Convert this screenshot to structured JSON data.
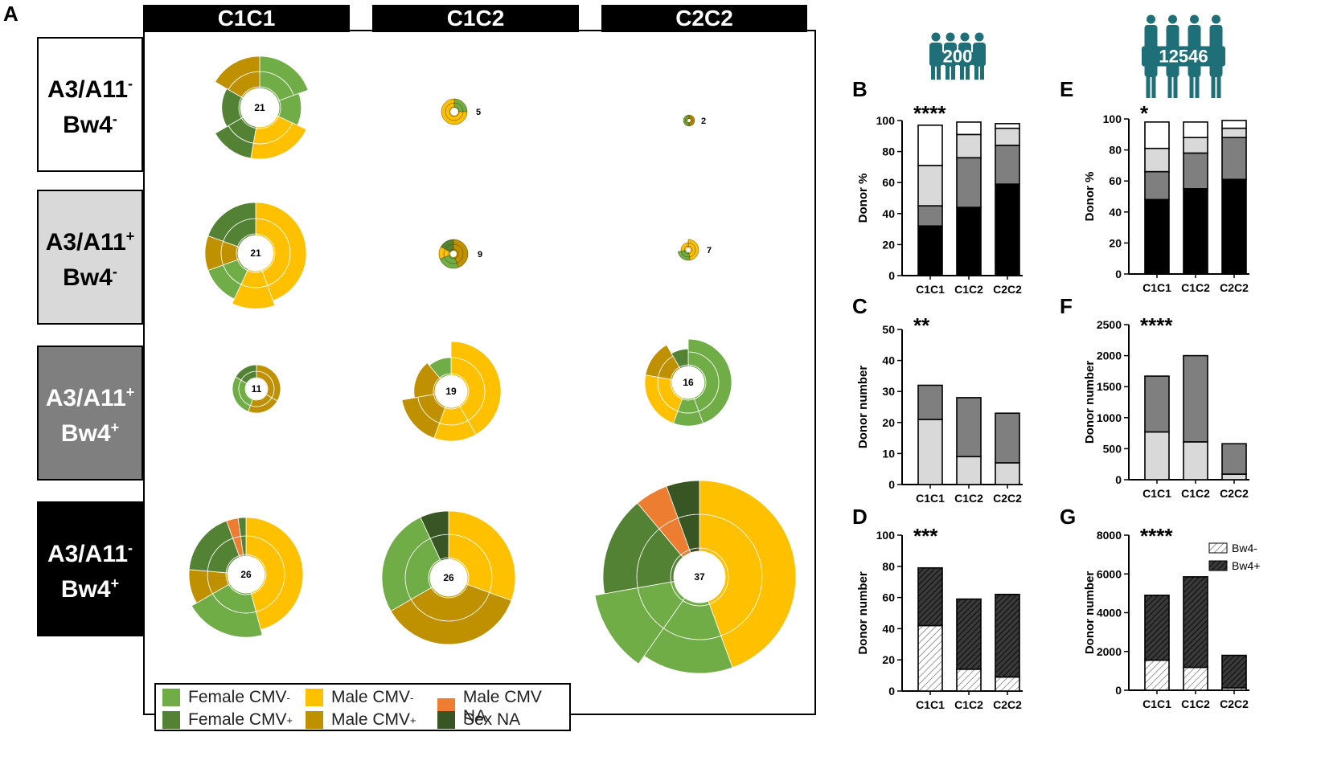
{
  "panel_a": {
    "letter": "A",
    "columns": [
      "C1C1",
      "C1C2",
      "C2C2"
    ],
    "rows": [
      {
        "line1": "A3/A11",
        "sup1": "-",
        "line2": "Bw4",
        "sup2": "-",
        "bg": "#ffffff",
        "fg": "#000000"
      },
      {
        "line1": "A3/A11",
        "sup1": "+",
        "line2": "Bw4",
        "sup2": "-",
        "bg": "#d9d9d9",
        "fg": "#000000"
      },
      {
        "line1": "A3/A11",
        "sup1": "+",
        "line2": "Bw4",
        "sup2": "+",
        "bg": "#7f7f7f",
        "fg": "#ffffff"
      },
      {
        "line1": "A3/A11",
        "sup1": "-",
        "line2": "Bw4",
        "sup2": "+",
        "bg": "#000000",
        "fg": "#ffffff"
      }
    ],
    "sunbursts": [
      {
        "row": 0,
        "col": 0,
        "count": 21
      },
      {
        "row": 0,
        "col": 1,
        "count": 5
      },
      {
        "row": 0,
        "col": 2,
        "count": 2
      },
      {
        "row": 1,
        "col": 0,
        "count": 21
      },
      {
        "row": 1,
        "col": 1,
        "count": 9
      },
      {
        "row": 1,
        "col": 2,
        "count": 7
      },
      {
        "row": 2,
        "col": 0,
        "count": 11
      },
      {
        "row": 2,
        "col": 1,
        "count": 19
      },
      {
        "row": 2,
        "col": 2,
        "count": 16
      },
      {
        "row": 3,
        "col": 0,
        "count": 26
      },
      {
        "row": 3,
        "col": 1,
        "count": 26
      },
      {
        "row": 3,
        "col": 2,
        "count": 37
      }
    ],
    "legend": [
      {
        "label": "Female CMV",
        "sup": "-",
        "color": "#70ad47"
      },
      {
        "label": "Male CMV",
        "sup": "-",
        "color": "#ffc000"
      },
      {
        "label": "Male CMV NA",
        "sup": "",
        "color": "#ed7d31"
      },
      {
        "label": "Female CMV",
        "sup": "+",
        "color": "#548235"
      },
      {
        "label": "Male CMV",
        "sup": "+",
        "color": "#bf9000"
      },
      {
        "label": "Sex NA",
        "sup": "",
        "color": "#375623"
      }
    ]
  },
  "icons": {
    "left_count": "200",
    "right_count": "12546",
    "color": "#1f6f78"
  },
  "colors": {
    "white": "#ffffff",
    "light_grey": "#d9d9d9",
    "dark_grey": "#7f7f7f",
    "black": "#000000"
  },
  "chart_data": [
    {
      "panel": "B",
      "type": "bar",
      "stacked": true,
      "significance": "****",
      "ylabel": "Donor %",
      "ylim": [
        0,
        100
      ],
      "yticks": [
        0,
        20,
        40,
        60,
        80,
        100
      ],
      "categories": [
        "C1C1",
        "C1C2",
        "C2C2"
      ],
      "series": [
        {
          "name": "A3/A11- Bw4+",
          "color": "#000000",
          "values": [
            32,
            44,
            59
          ]
        },
        {
          "name": "A3/A11+ Bw4+",
          "color": "#7f7f7f",
          "values": [
            13,
            32,
            25
          ]
        },
        {
          "name": "A3/A11+ Bw4-",
          "color": "#d9d9d9",
          "values": [
            26,
            15,
            11
          ]
        },
        {
          "name": "A3/A11- Bw4-",
          "color": "#ffffff",
          "values": [
            26,
            8,
            3
          ]
        }
      ]
    },
    {
      "panel": "C",
      "type": "bar",
      "stacked": true,
      "significance": "**",
      "ylabel": "Donor number",
      "ylim": [
        0,
        50
      ],
      "yticks": [
        0,
        10,
        20,
        30,
        40,
        50
      ],
      "categories": [
        "C1C1",
        "C1C2",
        "C2C2"
      ],
      "series": [
        {
          "name": "A3/A11+ Bw4-",
          "color": "#d9d9d9",
          "values": [
            21,
            9,
            7
          ]
        },
        {
          "name": "A3/A11+ Bw4+",
          "color": "#7f7f7f",
          "values": [
            11,
            19,
            16
          ]
        }
      ]
    },
    {
      "panel": "D",
      "type": "bar",
      "stacked": true,
      "significance": "***",
      "ylabel": "Donor number",
      "ylim": [
        0,
        100
      ],
      "yticks": [
        0,
        20,
        40,
        60,
        80,
        100
      ],
      "categories": [
        "C1C1",
        "C1C2",
        "C2C2"
      ],
      "series": [
        {
          "name": "Bw4-",
          "pattern": "light",
          "values": [
            42,
            14,
            9
          ]
        },
        {
          "name": "Bw4+",
          "pattern": "dark",
          "values": [
            37,
            45,
            53
          ]
        }
      ]
    },
    {
      "panel": "E",
      "type": "bar",
      "stacked": true,
      "significance": "*",
      "ylabel": "Donor %",
      "ylim": [
        0,
        100
      ],
      "yticks": [
        0,
        20,
        40,
        60,
        80,
        100
      ],
      "categories": [
        "C1C1",
        "C1C2",
        "C2C2"
      ],
      "series": [
        {
          "name": "A3/A11- Bw4+",
          "color": "#000000",
          "values": [
            48,
            55,
            61
          ]
        },
        {
          "name": "A3/A11+ Bw4+",
          "color": "#7f7f7f",
          "values": [
            18,
            23,
            27
          ]
        },
        {
          "name": "A3/A11+ Bw4-",
          "color": "#d9d9d9",
          "values": [
            15,
            10,
            6
          ]
        },
        {
          "name": "A3/A11- Bw4-",
          "color": "#ffffff",
          "values": [
            17,
            10,
            5
          ]
        }
      ]
    },
    {
      "panel": "F",
      "type": "bar",
      "stacked": true,
      "significance": "****",
      "ylabel": "Donor number",
      "ylim": [
        0,
        2500
      ],
      "yticks": [
        0,
        500,
        1000,
        1500,
        2000,
        2500
      ],
      "categories": [
        "C1C1",
        "C1C2",
        "C2C2"
      ],
      "series": [
        {
          "name": "A3/A11+ Bw4-",
          "color": "#d9d9d9",
          "values": [
            770,
            610,
            90
          ]
        },
        {
          "name": "A3/A11+ Bw4+",
          "color": "#7f7f7f",
          "values": [
            900,
            1390,
            490
          ]
        }
      ]
    },
    {
      "panel": "G",
      "type": "bar",
      "stacked": true,
      "significance": "****",
      "ylabel": "Donor number",
      "ylim": [
        0,
        8000
      ],
      "yticks": [
        0,
        2000,
        4000,
        6000,
        8000
      ],
      "categories": [
        "C1C1",
        "C1C2",
        "C2C2"
      ],
      "legend": [
        "Bw4-",
        "Bw4+"
      ],
      "series": [
        {
          "name": "Bw4-",
          "pattern": "light",
          "values": [
            1550,
            1180,
            120
          ]
        },
        {
          "name": "Bw4+",
          "pattern": "dark",
          "values": [
            3350,
            4670,
            1680
          ]
        }
      ]
    }
  ]
}
